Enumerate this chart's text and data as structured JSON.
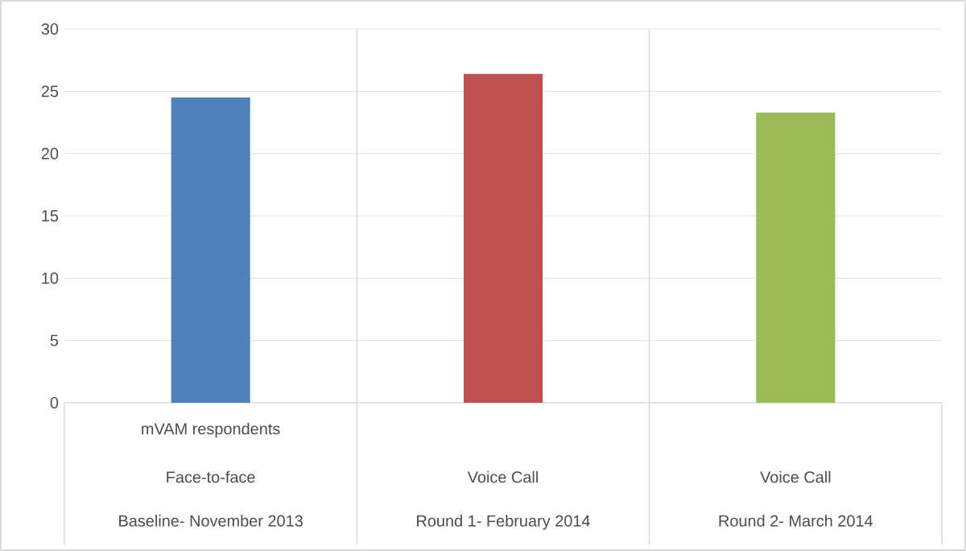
{
  "chart_data": {
    "type": "bar",
    "categories": [
      "Baseline- November 2013",
      "Round 1- February 2014",
      "Round 2- March 2014"
    ],
    "values": [
      24.5,
      26.4,
      23.3
    ],
    "colors": [
      "#4f81bd",
      "#c0504d",
      "#9bbb59"
    ],
    "ylim": [
      0,
      30
    ],
    "yticks": [
      0,
      5,
      10,
      15,
      20,
      25,
      30
    ],
    "grid": "y",
    "annotations": [
      "mVAM respondents",
      "Face-to-face",
      "Voice Call",
      "Voice Call"
    ]
  }
}
